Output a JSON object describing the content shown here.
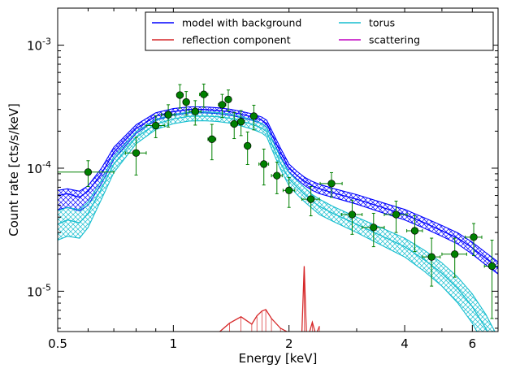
{
  "chart_data": {
    "type": "line",
    "title": "",
    "xlabel": "Energy [keV]",
    "ylabel": "Count rate [cts/s/keV]",
    "x_scale": "log",
    "y_scale": "log",
    "xlim": [
      0.5,
      7.0
    ],
    "ylim": [
      4.7e-06,
      0.002
    ],
    "x_ticks": [
      {
        "value": 0.5,
        "label": "0.5"
      },
      {
        "value": 1,
        "label": "1"
      },
      {
        "value": 2,
        "label": "2"
      },
      {
        "value": 4,
        "label": "4"
      },
      {
        "value": 6,
        "label": "6"
      }
    ],
    "y_ticks": [
      {
        "value": 1e-05,
        "mantissa": "10",
        "exponent": "-5"
      },
      {
        "value": 0.0001,
        "mantissa": "10",
        "exponent": "-4"
      },
      {
        "value": 0.001,
        "mantissa": "10",
        "exponent": "-3"
      }
    ],
    "legend": {
      "position": "top-right",
      "columns": 2,
      "entries": [
        {
          "label": "model with background",
          "color": "#0000ff"
        },
        {
          "label": "torus",
          "color": "#17becf"
        },
        {
          "label": "reflection component",
          "color": "#d62728"
        },
        {
          "label": "scattering",
          "color": "#c000c0"
        }
      ]
    },
    "series": [
      {
        "name": "model with background",
        "color": "#0000ff",
        "x": [
          0.5,
          0.53,
          0.57,
          0.6,
          0.65,
          0.7,
          0.8,
          0.9,
          1.0,
          1.1,
          1.2,
          1.3,
          1.4,
          1.5,
          1.6,
          1.7,
          1.75,
          1.8,
          1.9,
          2.0,
          2.1,
          2.2,
          2.3,
          2.4,
          2.6,
          3.0,
          3.5,
          4.0,
          4.5,
          5.0,
          5.5,
          6.0,
          6.5,
          7.0
        ],
        "y": [
          6e-05,
          6.2e-05,
          5.8e-05,
          6.5e-05,
          9e-05,
          0.000135,
          0.00021,
          0.000265,
          0.000288,
          0.0003,
          0.0003,
          0.000295,
          0.000288,
          0.000275,
          0.000262,
          0.000245,
          0.00023,
          0.00019,
          0.000135,
          0.0001,
          8.7e-05,
          7.8e-05,
          7.2e-05,
          6.8e-05,
          6.3e-05,
          5.6e-05,
          4.8e-05,
          4.2e-05,
          3.6e-05,
          3.1e-05,
          2.7e-05,
          2.25e-05,
          1.85e-05,
          1.55e-05
        ],
        "band_low": [
          4.6e-05,
          4.8e-05,
          4.5e-05,
          5e-05,
          7.5e-05,
          0.000118,
          0.000192,
          0.000245,
          0.00027,
          0.000282,
          0.000282,
          0.000278,
          0.00027,
          0.000258,
          0.000245,
          0.00023,
          0.000214,
          0.000176,
          0.000125,
          9.3e-05,
          8.1e-05,
          7.2e-05,
          6.6e-05,
          6.2e-05,
          5.8e-05,
          5.1e-05,
          4.35e-05,
          3.8e-05,
          3.25e-05,
          2.8e-05,
          2.42e-05,
          2e-05,
          1.64e-05,
          1.38e-05
        ],
        "band_high": [
          6.6e-05,
          6.8e-05,
          6.5e-05,
          7.2e-05,
          0.0001,
          0.000148,
          0.000225,
          0.000282,
          0.000305,
          0.000315,
          0.000315,
          0.00031,
          0.000302,
          0.00029,
          0.000277,
          0.00026,
          0.000245,
          0.000205,
          0.000146,
          0.000108,
          9.4e-05,
          8.4e-05,
          7.8e-05,
          7.4e-05,
          6.85e-05,
          6.1e-05,
          5.25e-05,
          4.62e-05,
          3.95e-05,
          3.42e-05,
          2.98e-05,
          2.5e-05,
          2.06e-05,
          1.73e-05
        ]
      },
      {
        "name": "torus",
        "color": "#17becf",
        "x": [
          0.5,
          0.53,
          0.57,
          0.6,
          0.65,
          0.7,
          0.8,
          0.9,
          1.0,
          1.1,
          1.2,
          1.3,
          1.4,
          1.5,
          1.6,
          1.7,
          1.75,
          1.8,
          1.9,
          2.0,
          2.1,
          2.2,
          2.3,
          2.4,
          2.6,
          3.0,
          3.5,
          4.0,
          4.5,
          5.0,
          5.5,
          6.0,
          6.5,
          7.0
        ],
        "y": [
          3.5e-05,
          3.8e-05,
          3.6e-05,
          4.3e-05,
          6.8e-05,
          0.000108,
          0.000178,
          0.000228,
          0.000252,
          0.000264,
          0.000265,
          0.000262,
          0.000255,
          0.000242,
          0.000228,
          0.000212,
          0.000198,
          0.00016,
          0.00011,
          8.2e-05,
          7e-05,
          6.1e-05,
          5.4e-05,
          4.9e-05,
          4.3e-05,
          3.5e-05,
          2.8e-05,
          2.3e-05,
          1.8e-05,
          1.4e-05,
          1.05e-05,
          7.5e-06,
          5e-06,
          3.2e-06
        ],
        "band_low": [
          2.6e-05,
          2.8e-05,
          2.7e-05,
          3.3e-05,
          5.6e-05,
          9.2e-05,
          0.000158,
          0.000206,
          0.00023,
          0.000242,
          0.000243,
          0.00024,
          0.000233,
          0.000221,
          0.000208,
          0.000193,
          0.00018,
          0.000145,
          9.8e-05,
          7.2e-05,
          6.1e-05,
          5.3e-05,
          4.7e-05,
          4.2e-05,
          3.7e-05,
          3e-05,
          2.35e-05,
          1.9e-05,
          1.45e-05,
          1.1e-05,
          8e-06,
          5.5e-06,
          3.5e-06,
          2.2e-06
        ],
        "band_high": [
          4.5e-05,
          4.8e-05,
          4.6e-05,
          5.3e-05,
          8e-05,
          0.000124,
          0.000198,
          0.00025,
          0.000274,
          0.000286,
          0.000287,
          0.000284,
          0.000277,
          0.000263,
          0.000248,
          0.000231,
          0.000216,
          0.000175,
          0.000122,
          9.2e-05,
          7.9e-05,
          6.9e-05,
          6.1e-05,
          5.6e-05,
          4.9e-05,
          4e-05,
          3.25e-05,
          2.7e-05,
          2.15e-05,
          1.7e-05,
          1.3e-05,
          9.5e-06,
          6.5e-06,
          4.2e-06
        ]
      },
      {
        "name": "reflection component",
        "color": "#d62728",
        "x": [
          1.3,
          1.4,
          1.5,
          1.6,
          1.65,
          1.7,
          1.74,
          1.8,
          1.9,
          2.0,
          2.1,
          2.16,
          2.19,
          2.22,
          2.25,
          2.3,
          2.35,
          2.4
        ],
        "y": [
          4.5e-06,
          5.5e-06,
          6.2e-06,
          5.4e-06,
          6.3e-06,
          6.9e-06,
          7.1e-06,
          6e-06,
          5e-06,
          4.6e-06,
          4.4e-06,
          4.5e-06,
          1.6e-05,
          4.5e-06,
          4.4e-06,
          5.6e-06,
          4.4e-06,
          5.2e-06
        ]
      },
      {
        "name": "scattering",
        "color": "#c000c0",
        "x": [],
        "y": []
      },
      {
        "name": "data",
        "color": "#008000",
        "marker": "circle",
        "x": [
          0.6,
          0.8,
          0.9,
          0.97,
          1.04,
          1.08,
          1.14,
          1.2,
          1.26,
          1.34,
          1.39,
          1.44,
          1.5,
          1.56,
          1.62,
          1.72,
          1.86,
          2.0,
          2.28,
          2.58,
          2.92,
          3.32,
          3.8,
          4.25,
          4.7,
          5.4,
          6.05,
          6.75
        ],
        "y": [
          9.3e-05,
          0.000133,
          0.000222,
          0.000272,
          0.000393,
          0.000345,
          0.000289,
          0.000398,
          0.000172,
          0.000328,
          0.000362,
          0.000229,
          0.000239,
          0.000152,
          0.000265,
          0.000108,
          8.7e-05,
          6.6e-05,
          5.6e-05,
          7.5e-05,
          4.2e-05,
          3.3e-05,
          4.2e-05,
          3.1e-05,
          1.9e-05,
          2e-05,
          2.75e-05,
          1.6e-05
        ],
        "xerr_low": [
          0.1,
          0.05,
          0.05,
          0.04,
          0.02,
          0.02,
          0.04,
          0.03,
          0.03,
          0.03,
          0.02,
          0.03,
          0.03,
          0.03,
          0.03,
          0.05,
          0.06,
          0.07,
          0.12,
          0.17,
          0.18,
          0.22,
          0.26,
          0.2,
          0.25,
          0.4,
          0.3,
          0.3
        ],
        "xerr_high": [
          0.1,
          0.05,
          0.05,
          0.04,
          0.02,
          0.02,
          0.04,
          0.03,
          0.03,
          0.03,
          0.02,
          0.03,
          0.03,
          0.03,
          0.03,
          0.05,
          0.06,
          0.07,
          0.12,
          0.17,
          0.18,
          0.22,
          0.26,
          0.2,
          0.25,
          0.4,
          0.3,
          0.3
        ],
        "yerr_low": [
          2.2e-05,
          4.5e-05,
          4.5e-05,
          5.6e-05,
          8.5e-05,
          7.5e-05,
          6.5e-05,
          8.5e-05,
          5.5e-05,
          7e-05,
          7e-05,
          5.5e-05,
          5.5e-05,
          4.5e-05,
          6e-05,
          3.5e-05,
          2.5e-05,
          1.8e-05,
          1.5e-05,
          1.7e-05,
          1.3e-05,
          1e-05,
          1.2e-05,
          1e-05,
          8e-06,
          7e-06,
          8e-06,
          1e-05
        ],
        "yerr_high": [
          2.2e-05,
          4.5e-05,
          4.5e-05,
          5.6e-05,
          8.5e-05,
          7.5e-05,
          6.5e-05,
          8.5e-05,
          5.5e-05,
          7e-05,
          7e-05,
          5.5e-05,
          5.5e-05,
          4.5e-05,
          6e-05,
          3.5e-05,
          2.5e-05,
          1.8e-05,
          1.5e-05,
          1.7e-05,
          1.3e-05,
          1e-05,
          1.2e-05,
          1e-05,
          8e-06,
          7e-06,
          8e-06,
          1e-05
        ]
      }
    ]
  }
}
